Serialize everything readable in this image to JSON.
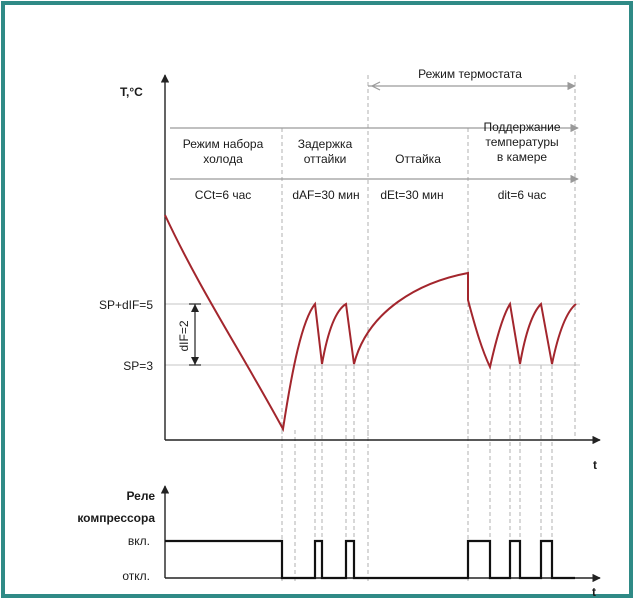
{
  "colors": {
    "frame": "#2f8a86",
    "curve": "#a3262d",
    "axis": "#222222",
    "guide": "#b8b8b8",
    "arrow": "#9a9a9a",
    "relay": "#111111"
  },
  "top_chart": {
    "y_axis_label": "T,°C",
    "x_axis_label": "t",
    "thermostat_mode_label": "Режим термостата",
    "levels": {
      "upper": "SP+dIF=5",
      "lower": "SP=3",
      "hysteresis": "dIF=2"
    },
    "phases": [
      {
        "title": "Режим набора холода",
        "duration": "CCt=6 час"
      },
      {
        "title": "Задержка оттайки",
        "duration": "dAF=30 мин"
      },
      {
        "title": "Оттайка",
        "duration": "dEt=30 мин"
      },
      {
        "title": "Поддержание температуры в камере",
        "duration": "dit=6 час"
      }
    ]
  },
  "relay_chart": {
    "title": "Реле компрессора",
    "on_label": "вкл.",
    "off_label": "откл.",
    "x_axis_label": "t"
  }
}
